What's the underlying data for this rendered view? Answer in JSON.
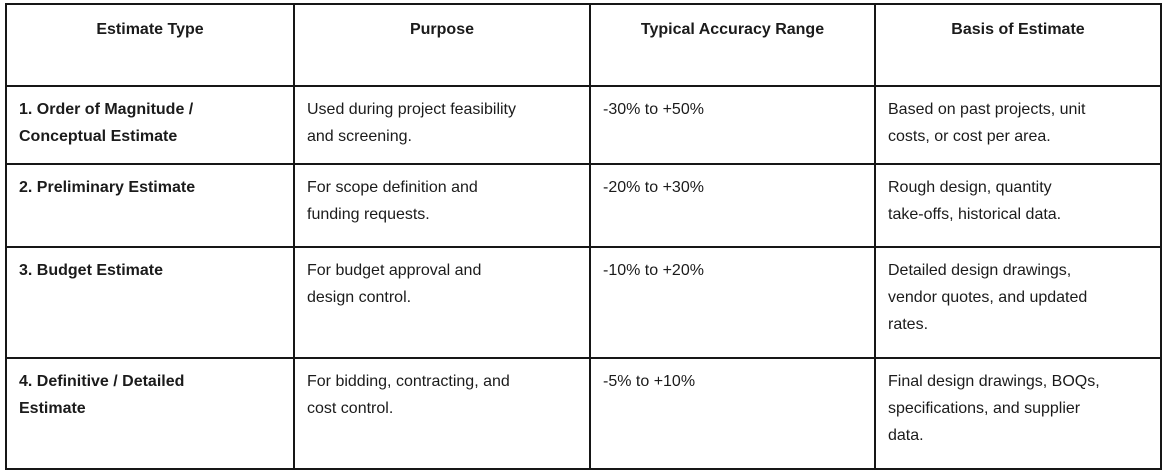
{
  "colors": {
    "background": "#ffffff",
    "border": "#161616",
    "text": "#1b1b1b"
  },
  "table": {
    "headers": [
      "Estimate Type",
      "Purpose",
      "Typical Accuracy Range",
      "Basis of Estimate"
    ],
    "rows": [
      {
        "cells": [
          "1. Order of Magnitude /\nConceptual Estimate",
          "Used during project feasibility\nand screening.",
          "-30% to +50%",
          "Based on past projects, unit\ncosts, or cost per area."
        ]
      },
      {
        "cells": [
          "2. Preliminary Estimate",
          "For scope definition and\nfunding requests.",
          "-20% to +30%",
          "Rough design, quantity\ntake-offs, historical data."
        ]
      },
      {
        "cells": [
          "3. Budget Estimate",
          "For budget approval and\ndesign control.",
          "-10% to +20%",
          "Detailed design drawings,\nvendor quotes, and updated\nrates."
        ]
      },
      {
        "cells": [
          "4. Definitive / Detailed\nEstimate",
          "For bidding, contracting, and\ncost control.",
          "-5% to +10%",
          "Final design drawings, BOQs,\nspecifications, and supplier\ndata."
        ]
      }
    ]
  }
}
